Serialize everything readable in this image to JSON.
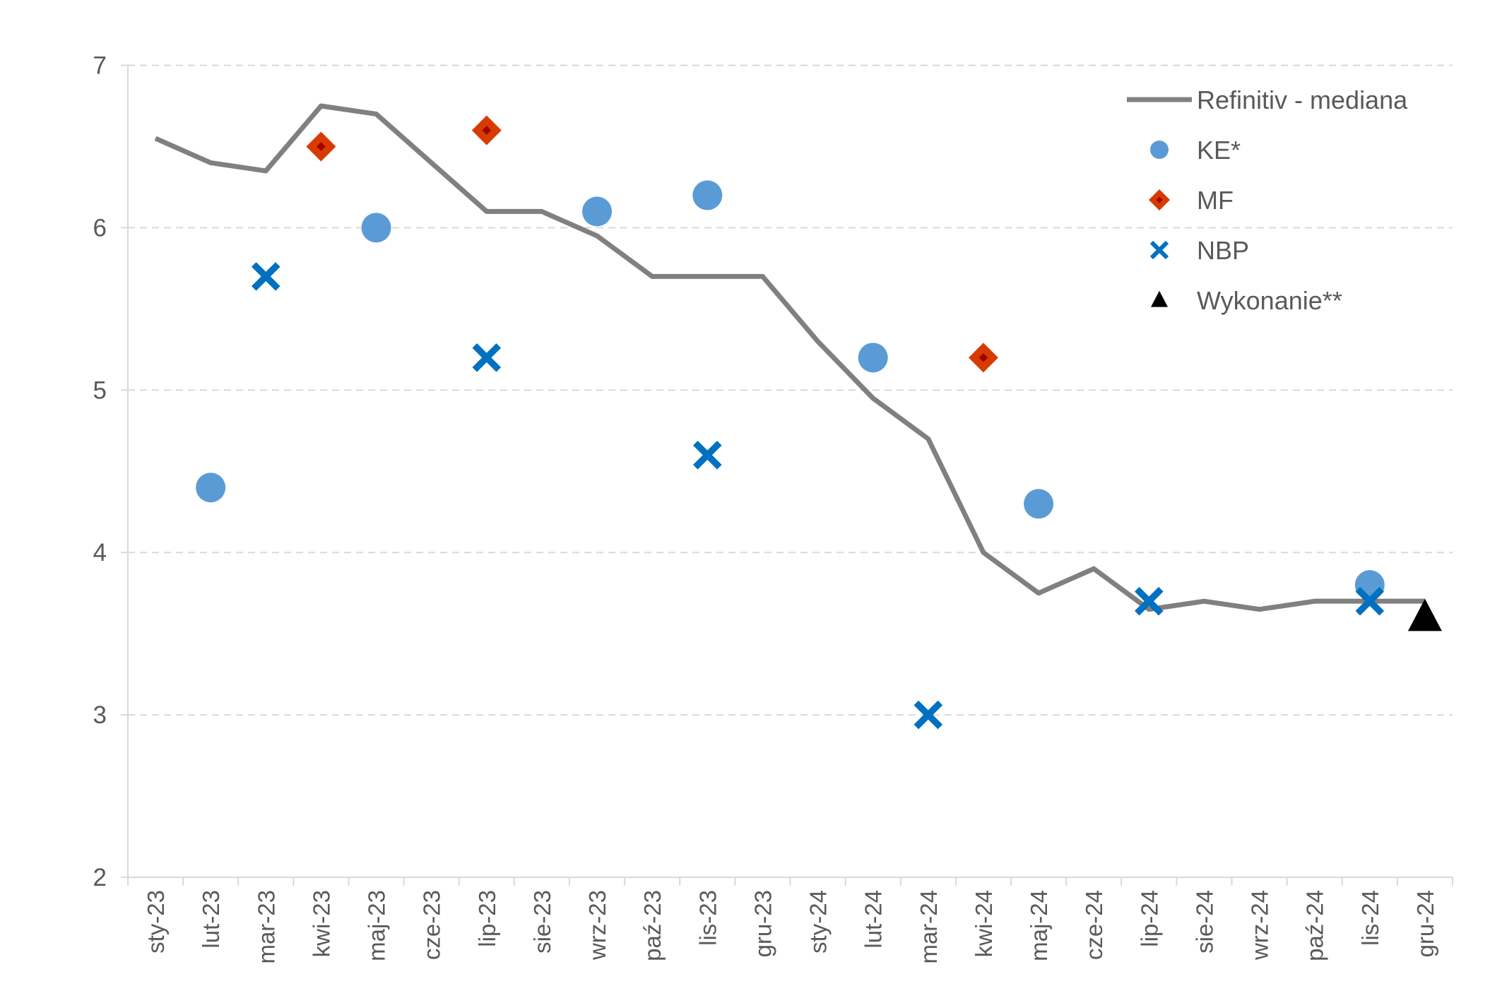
{
  "chart_data": {
    "type": "line",
    "title": "",
    "xlabel": "",
    "ylabel": "",
    "ylim": [
      2,
      7
    ],
    "yticks": [
      "2",
      "3",
      "4",
      "5",
      "6",
      "7"
    ],
    "grid": true,
    "legend_position": "top-right",
    "categories": [
      "sty-23",
      "lut-23",
      "mar-23",
      "kwi-23",
      "maj-23",
      "cze-23",
      "lip-23",
      "sie-23",
      "wrz-23",
      "paź-23",
      "lis-23",
      "gru-23",
      "sty-24",
      "lut-24",
      "mar-24",
      "kwi-24",
      "maj-24",
      "cze-24",
      "lip-24",
      "sie-24",
      "wrz-24",
      "paź-24",
      "lis-24",
      "gru-24"
    ],
    "series": [
      {
        "name": "Refinitiv - mediana",
        "kind": "line",
        "color": "#808080",
        "values": [
          6.55,
          6.4,
          6.35,
          6.75,
          6.7,
          6.4,
          6.1,
          6.1,
          5.95,
          5.7,
          5.7,
          5.7,
          5.3,
          4.95,
          4.7,
          4.0,
          3.75,
          3.9,
          3.65,
          3.7,
          3.65,
          3.7,
          3.7,
          3.7
        ]
      },
      {
        "name": "KE*",
        "kind": "circle",
        "color": "#5B9BD5",
        "values": [
          null,
          4.4,
          null,
          null,
          6.0,
          null,
          null,
          null,
          6.1,
          null,
          6.2,
          null,
          null,
          5.2,
          null,
          null,
          4.3,
          null,
          null,
          null,
          null,
          null,
          3.8,
          null
        ]
      },
      {
        "name": "MF",
        "kind": "diamond",
        "color": "#D83B01",
        "values": [
          null,
          null,
          null,
          6.5,
          null,
          null,
          6.6,
          null,
          null,
          null,
          null,
          null,
          null,
          null,
          null,
          5.2,
          null,
          null,
          null,
          null,
          null,
          null,
          null,
          null
        ]
      },
      {
        "name": "NBP",
        "kind": "cross",
        "color": "#0070C0",
        "values": [
          null,
          null,
          5.7,
          null,
          null,
          null,
          5.2,
          null,
          null,
          null,
          4.6,
          null,
          null,
          null,
          3.0,
          null,
          null,
          null,
          3.7,
          null,
          null,
          null,
          3.7,
          null
        ]
      },
      {
        "name": "Wykonanie**",
        "kind": "triangle",
        "color": "#000000",
        "values": [
          null,
          null,
          null,
          null,
          null,
          null,
          null,
          null,
          null,
          null,
          null,
          null,
          null,
          null,
          null,
          null,
          null,
          null,
          null,
          null,
          null,
          null,
          null,
          3.6
        ]
      }
    ]
  }
}
